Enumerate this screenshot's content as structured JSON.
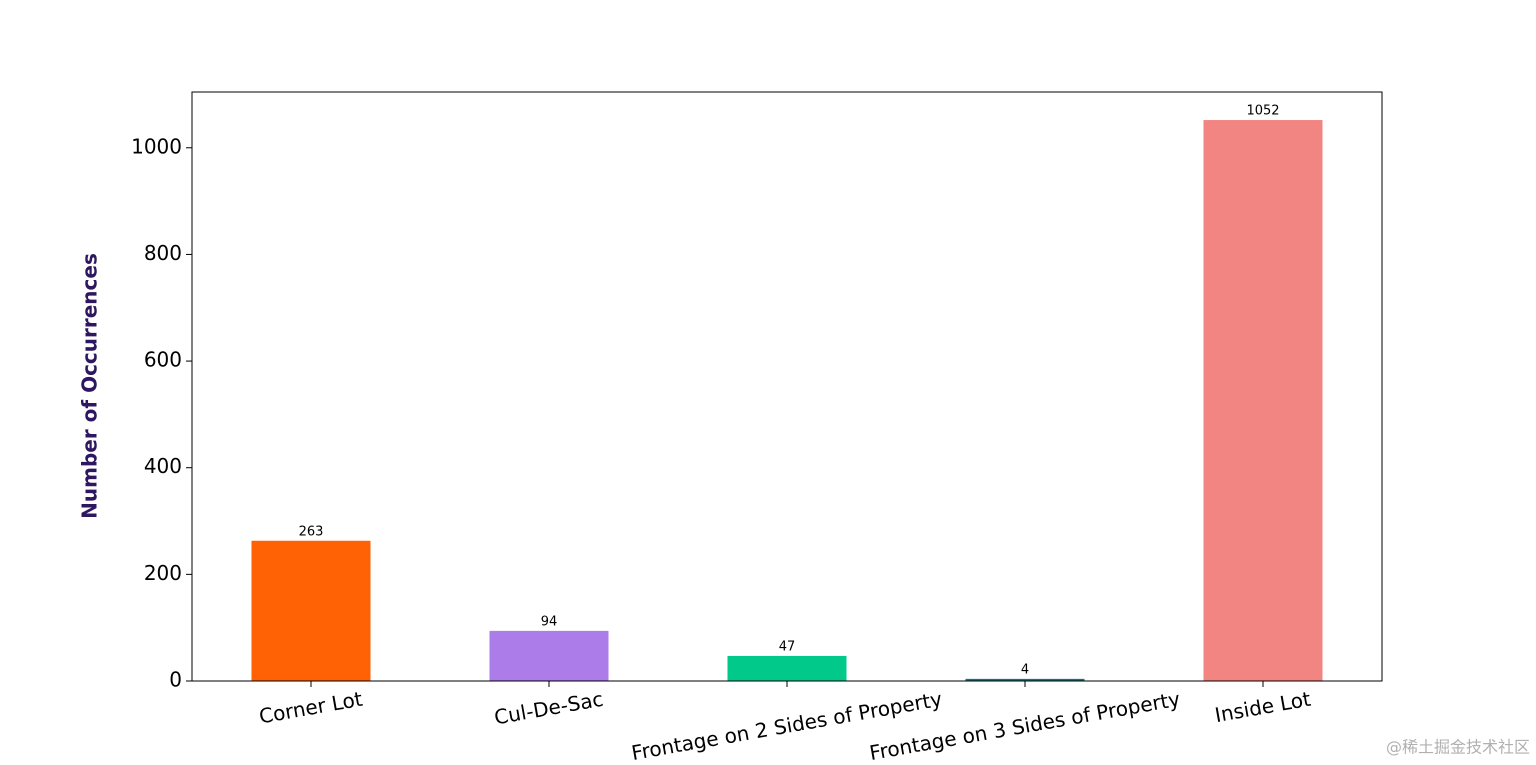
{
  "chart_data": {
    "type": "bar",
    "y_label": "Number of Occurrences",
    "categories": [
      "Corner Lot",
      "Cul-De-Sac",
      "Frontage on 2 Sides of Property",
      "Frontage on 3 Sides of Property",
      "Inside Lot"
    ],
    "values": [
      263,
      94,
      47,
      4,
      1052
    ],
    "colors": [
      "#ff6105",
      "#ac7de8",
      "#00c98a",
      "#1b6f85",
      "#f28482"
    ],
    "ylim": [
      0,
      1104.6
    ],
    "yticks": [
      0,
      200,
      400,
      600,
      800,
      1000
    ],
    "watermark": "@稀土掘金技术社区"
  }
}
